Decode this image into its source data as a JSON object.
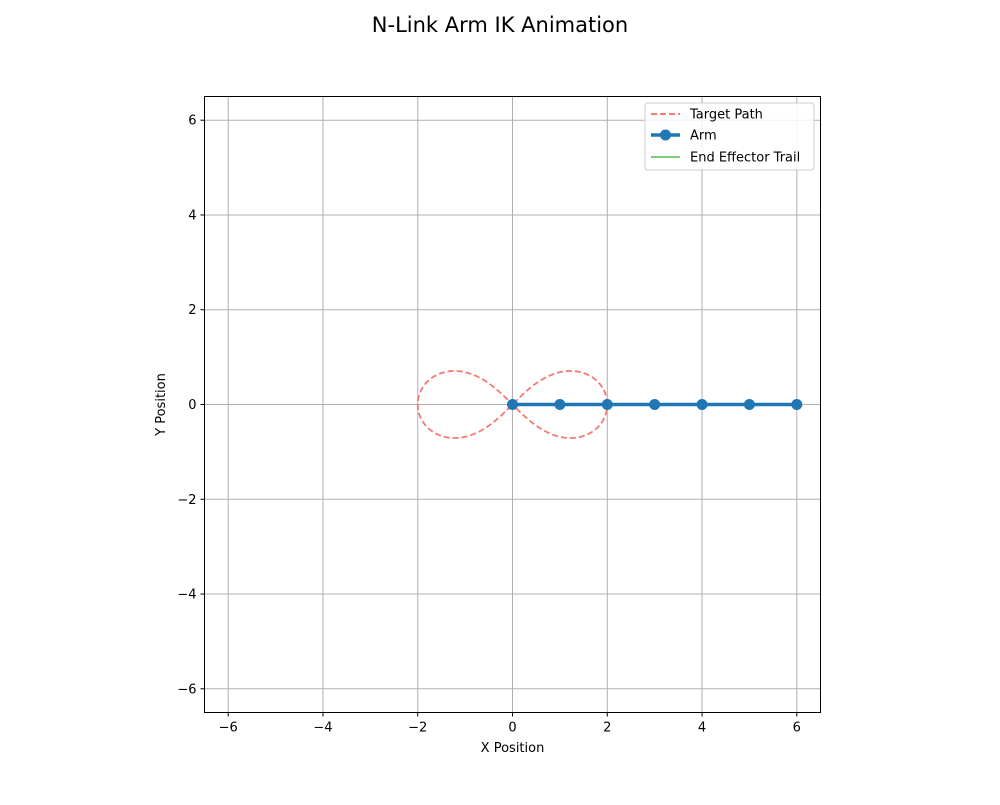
{
  "chart_data": {
    "type": "line",
    "title": "N-Link Arm IK Animation",
    "xlabel": "X Position",
    "ylabel": "Y Position",
    "xlim": [
      -6.5,
      6.5
    ],
    "ylim": [
      -6.5,
      6.5
    ],
    "x_ticks": [
      -6,
      -4,
      -2,
      0,
      2,
      4,
      6
    ],
    "y_ticks": [
      -6,
      -4,
      -2,
      0,
      2,
      4,
      6
    ],
    "x_tick_labels": [
      "−6",
      "−4",
      "−2",
      "0",
      "2",
      "4",
      "6"
    ],
    "y_tick_labels": [
      "−6",
      "−4",
      "−2",
      "0",
      "2",
      "4",
      "6"
    ],
    "grid": true,
    "legend_position": "top-right",
    "series": [
      {
        "name": "Target Path",
        "style": "dashed",
        "color": "#f47a74",
        "curve": "lemniscate",
        "a": 2,
        "center": [
          0,
          0
        ]
      },
      {
        "name": "Arm",
        "style": "solid-markers",
        "color": "#1f77b4",
        "x": [
          0,
          1,
          2,
          3,
          4,
          5,
          6
        ],
        "y": [
          0,
          0,
          0,
          0,
          0,
          0,
          0
        ]
      },
      {
        "name": "End Effector Trail",
        "style": "solid",
        "color": "#7ccc7c",
        "x": [],
        "y": []
      }
    ]
  }
}
